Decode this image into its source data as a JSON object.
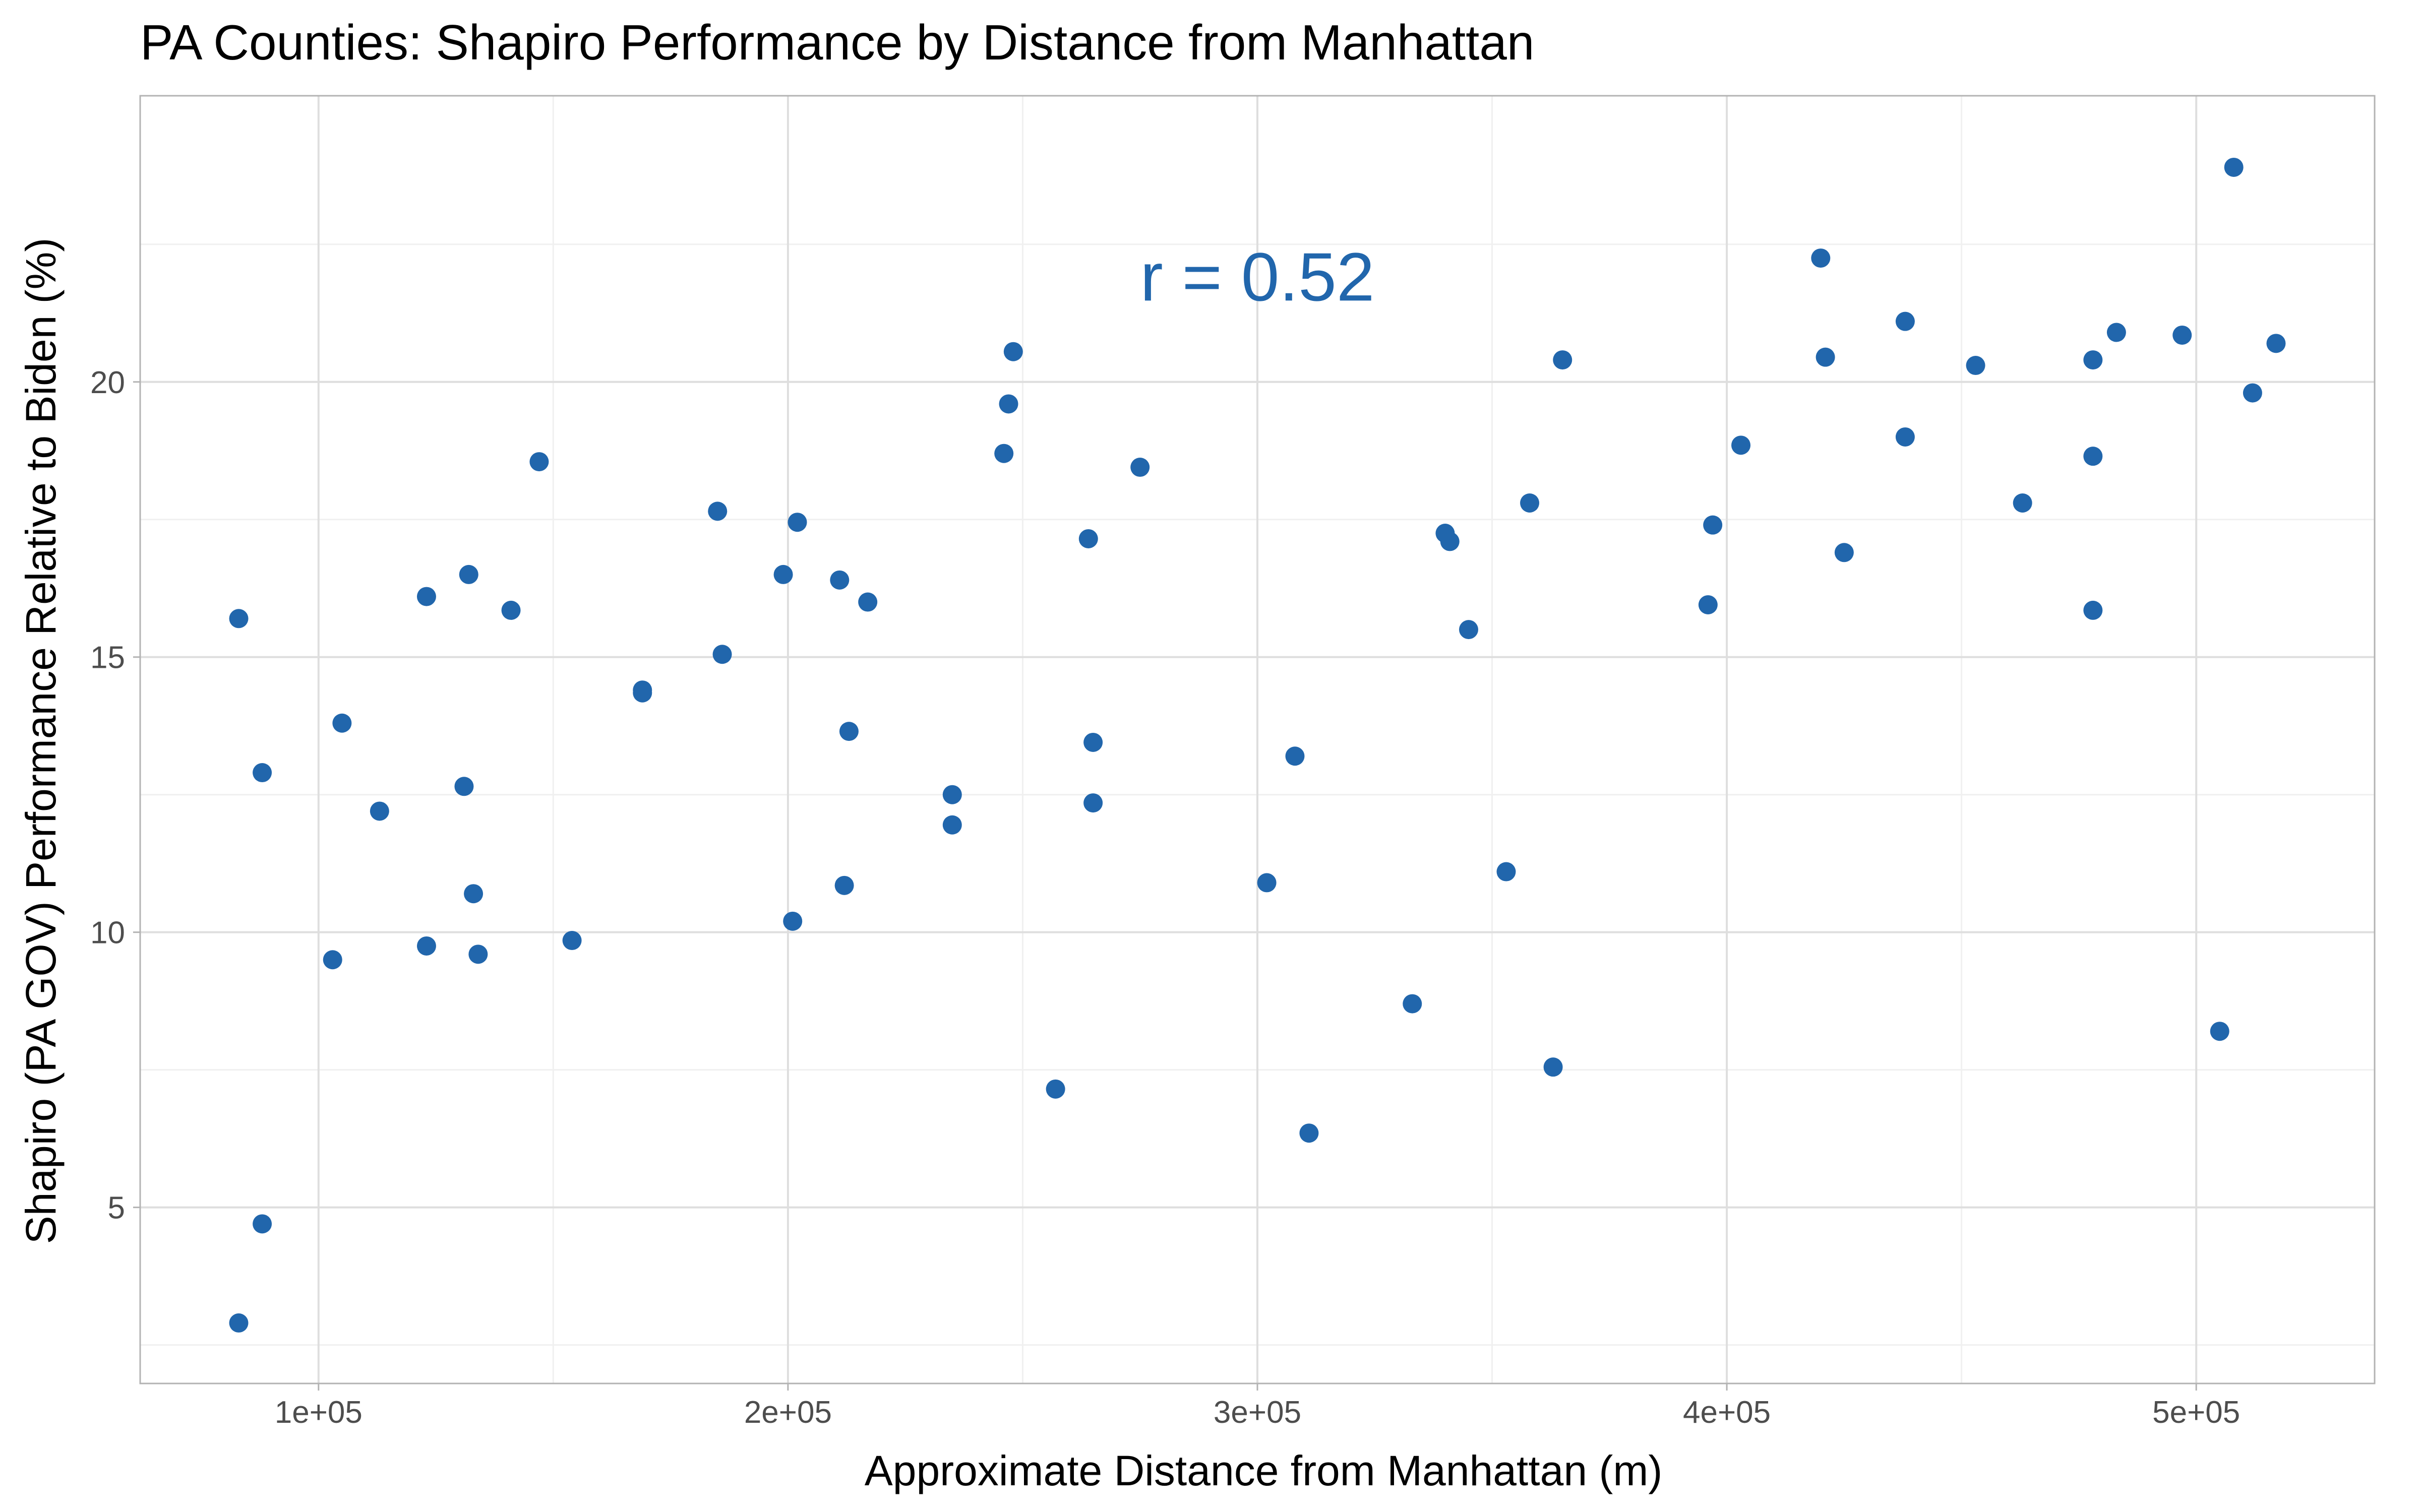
{
  "chart_data": {
    "type": "scatter",
    "title": "PA Counties: Shapiro Performance by Distance from Manhattan",
    "xlabel": "Approximate Distance from Manhattan (m)",
    "ylabel": "Shapiro (PA GOV) Performance Relative to Biden (%)",
    "xlim": [
      62000,
      538000
    ],
    "ylim": [
      1.8,
      25.2
    ],
    "x_ticks": [
      100000,
      200000,
      300000,
      400000,
      500000
    ],
    "x_tick_labels": [
      "1e+05",
      "2e+05",
      "3e+05",
      "4e+05",
      "5e+05"
    ],
    "y_ticks": [
      5,
      10,
      15,
      20
    ],
    "y_tick_labels": [
      "5",
      "10",
      "15",
      "20"
    ],
    "grid": true,
    "point_color": "#2166ac",
    "annotation": {
      "text": "r = 0.52",
      "x": 300000,
      "y": 21.9,
      "color": "#2166ac"
    },
    "points": [
      {
        "x": 83000,
        "y": 15.7
      },
      {
        "x": 83000,
        "y": 2.9
      },
      {
        "x": 88000,
        "y": 12.9
      },
      {
        "x": 88000,
        "y": 4.7
      },
      {
        "x": 103000,
        "y": 9.5
      },
      {
        "x": 105000,
        "y": 13.8
      },
      {
        "x": 113000,
        "y": 12.2
      },
      {
        "x": 123000,
        "y": 16.1
      },
      {
        "x": 123000,
        "y": 9.75
      },
      {
        "x": 131000,
        "y": 12.65
      },
      {
        "x": 132000,
        "y": 16.5
      },
      {
        "x": 133000,
        "y": 10.7
      },
      {
        "x": 134000,
        "y": 9.6
      },
      {
        "x": 141000,
        "y": 15.85
      },
      {
        "x": 147000,
        "y": 18.55
      },
      {
        "x": 154000,
        "y": 9.85
      },
      {
        "x": 169000,
        "y": 14.4
      },
      {
        "x": 169000,
        "y": 14.35
      },
      {
        "x": 185000,
        "y": 17.65
      },
      {
        "x": 186000,
        "y": 15.05
      },
      {
        "x": 199000,
        "y": 16.5
      },
      {
        "x": 201000,
        "y": 10.2
      },
      {
        "x": 202000,
        "y": 17.45
      },
      {
        "x": 211000,
        "y": 16.4
      },
      {
        "x": 212000,
        "y": 10.85
      },
      {
        "x": 213000,
        "y": 13.65
      },
      {
        "x": 217000,
        "y": 16.0
      },
      {
        "x": 235000,
        "y": 12.5
      },
      {
        "x": 235000,
        "y": 11.95
      },
      {
        "x": 246000,
        "y": 18.7
      },
      {
        "x": 247000,
        "y": 19.6
      },
      {
        "x": 248000,
        "y": 20.55
      },
      {
        "x": 257000,
        "y": 7.15
      },
      {
        "x": 264000,
        "y": 17.15
      },
      {
        "x": 265000,
        "y": 13.45
      },
      {
        "x": 265000,
        "y": 12.35
      },
      {
        "x": 275000,
        "y": 18.45
      },
      {
        "x": 302000,
        "y": 10.9
      },
      {
        "x": 308000,
        "y": 13.2
      },
      {
        "x": 311000,
        "y": 6.35
      },
      {
        "x": 333000,
        "y": 8.7
      },
      {
        "x": 340000,
        "y": 17.25
      },
      {
        "x": 341000,
        "y": 17.1
      },
      {
        "x": 345000,
        "y": 15.5
      },
      {
        "x": 353000,
        "y": 11.1
      },
      {
        "x": 358000,
        "y": 17.8
      },
      {
        "x": 363000,
        "y": 7.55
      },
      {
        "x": 365000,
        "y": 20.4
      },
      {
        "x": 396000,
        "y": 15.95
      },
      {
        "x": 397000,
        "y": 17.4
      },
      {
        "x": 403000,
        "y": 18.85
      },
      {
        "x": 420000,
        "y": 22.25
      },
      {
        "x": 421000,
        "y": 20.45
      },
      {
        "x": 425000,
        "y": 16.9
      },
      {
        "x": 438000,
        "y": 21.1
      },
      {
        "x": 438000,
        "y": 19.0
      },
      {
        "x": 453000,
        "y": 20.3
      },
      {
        "x": 463000,
        "y": 17.8
      },
      {
        "x": 478000,
        "y": 20.4
      },
      {
        "x": 478000,
        "y": 18.65
      },
      {
        "x": 478000,
        "y": 15.85
      },
      {
        "x": 483000,
        "y": 20.9
      },
      {
        "x": 497000,
        "y": 20.85
      },
      {
        "x": 505000,
        "y": 8.2
      },
      {
        "x": 508000,
        "y": 23.9
      },
      {
        "x": 512000,
        "y": 19.8
      },
      {
        "x": 517000,
        "y": 20.7
      }
    ]
  }
}
